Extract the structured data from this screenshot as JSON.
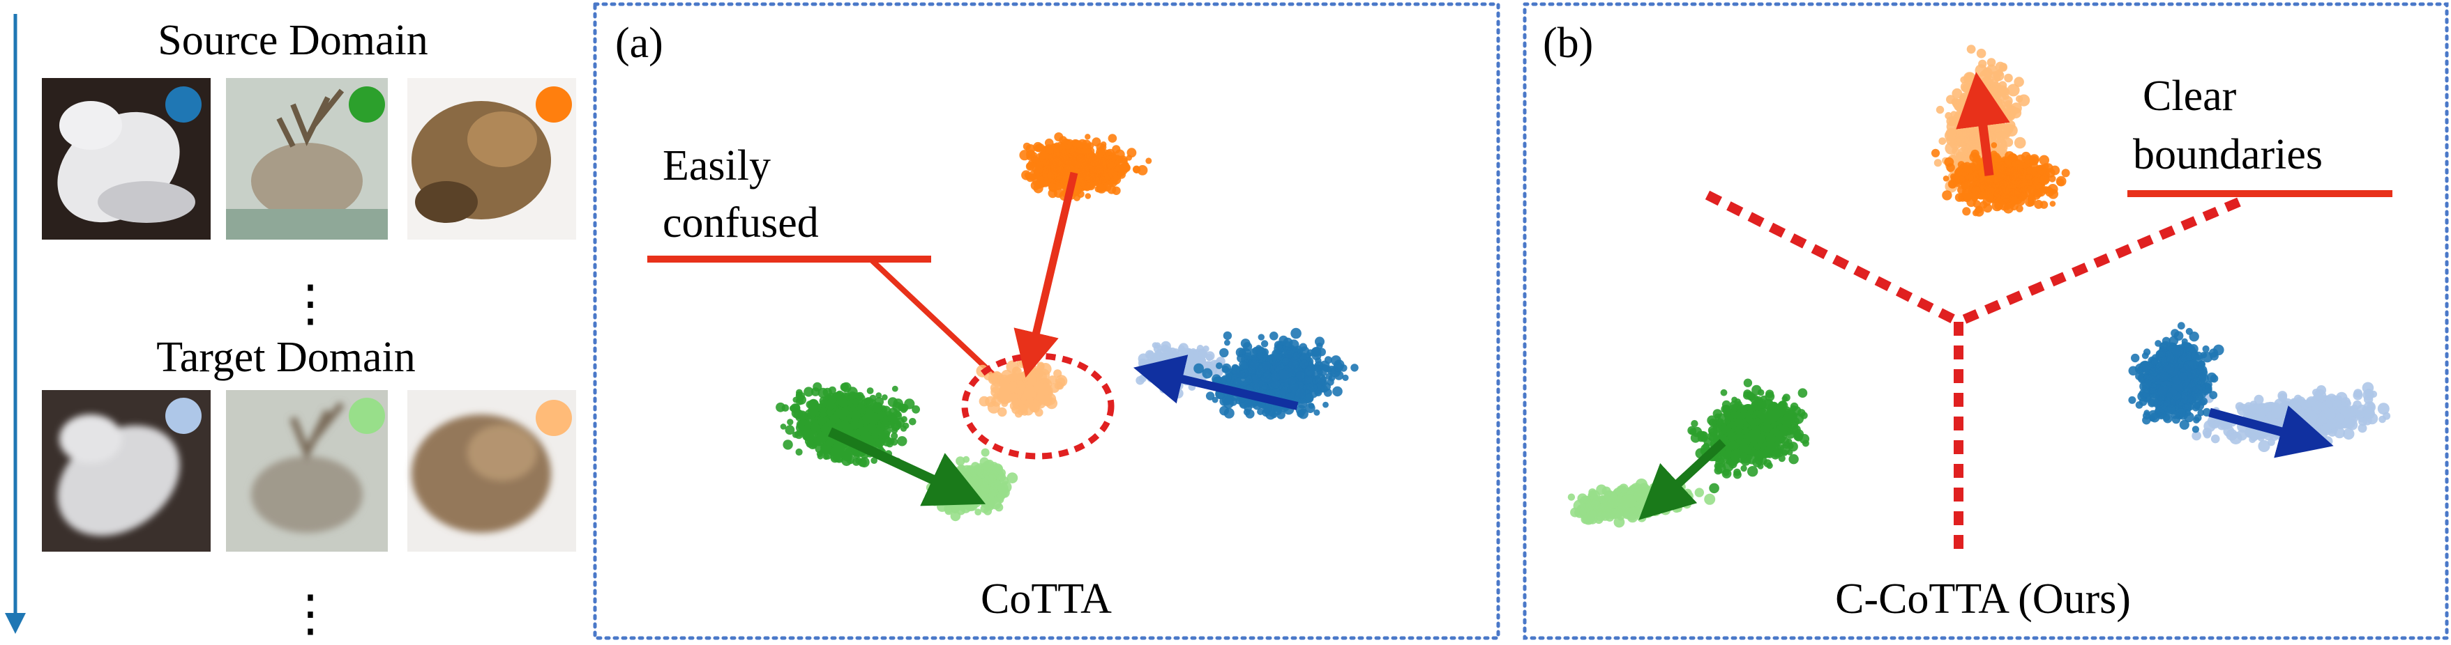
{
  "left_panel": {
    "source_title": "Source Domain",
    "target_title": "Target Domain",
    "ellipsis_symbol": "⋮",
    "source_images": [
      {
        "subject": "bird",
        "dot_color": "#1f77b4"
      },
      {
        "subject": "deer",
        "dot_color": "#2ca02c"
      },
      {
        "subject": "frog",
        "dot_color": "#ff7f0e"
      }
    ],
    "target_images": [
      {
        "subject": "bird",
        "dot_color": "#aec7e8"
      },
      {
        "subject": "deer",
        "dot_color": "#98df8a"
      },
      {
        "subject": "frog",
        "dot_color": "#ffbb78"
      }
    ],
    "time_arrow_color": "#1f77b4"
  },
  "panel_a": {
    "tag": "(a)",
    "caption": "CoTTA",
    "annotation_line1": "Easily",
    "annotation_line2": "confused"
  },
  "panel_b": {
    "tag": "(b)",
    "caption": "C-CoTTA (Ours)",
    "annotation_line1": "Clear",
    "annotation_line2": "boundaries"
  },
  "colors": {
    "orange_source": "#ff7f0e",
    "orange_target": "#ffbb78",
    "green_source": "#2ca02c",
    "green_target": "#98df8a",
    "blue_source": "#1f77b4",
    "blue_target": "#aec7e8",
    "arrow_red": "#e8311a",
    "arrow_green": "#1a7a1a",
    "arrow_blue": "#1030a0",
    "boundary_red": "#e02020",
    "frame_blue": "#4a78c8"
  }
}
